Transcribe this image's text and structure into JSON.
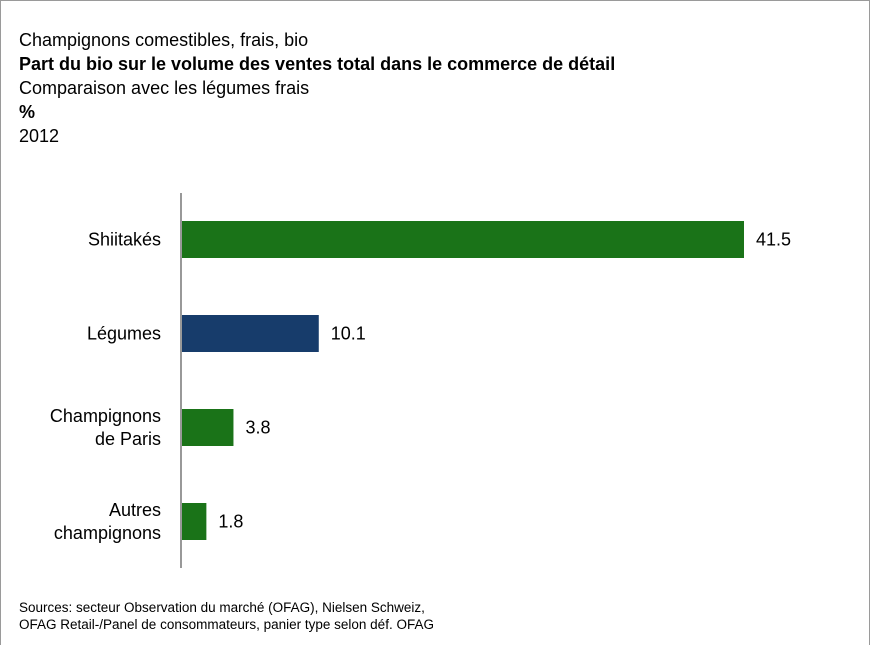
{
  "header": {
    "line1": "Champignons comestibles, frais, bio",
    "title": "Part du bio sur le volume des ventes total dans le commerce de détail",
    "subtitle": "Comparaison avec les légumes frais",
    "unit": "%",
    "year": "2012"
  },
  "colors": {
    "organic": "#1a7318",
    "vegetables": "#173c6b",
    "axis": "#555555"
  },
  "chart_data": {
    "type": "bar",
    "orientation": "horizontal",
    "categories": [
      [
        "Shiitakés"
      ],
      [
        "Légumes"
      ],
      [
        "Champignons",
        "de Paris"
      ],
      [
        "Autres",
        "champignons"
      ]
    ],
    "values": [
      41.5,
      10.1,
      3.8,
      1.8
    ],
    "value_labels": [
      "41.5",
      "10.1",
      "3.8",
      "1.8"
    ],
    "bar_colors": [
      "#1a7318",
      "#173c6b",
      "#1a7318",
      "#1a7318"
    ],
    "xlim": [
      0,
      41.5
    ],
    "grid": false,
    "legend": "none"
  },
  "footer": {
    "source_line1": "Sources: secteur Observation du marché (OFAG), Nielsen Schweiz,",
    "source_line2": "OFAG Retail-/Panel de consommateurs, panier type selon déf. OFAG"
  }
}
